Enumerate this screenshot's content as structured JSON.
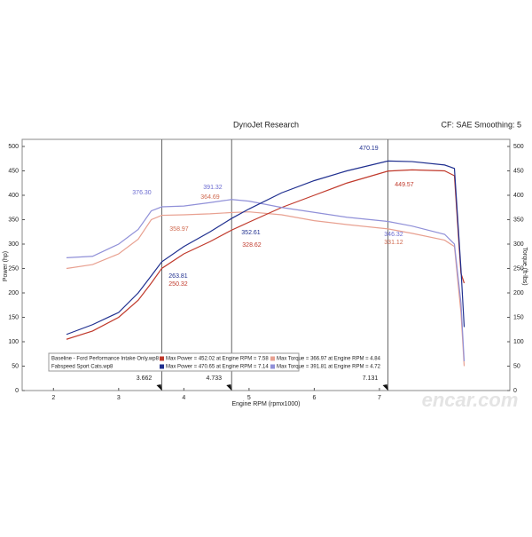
{
  "chart_data": {
    "type": "line",
    "title": "DynoJet Research",
    "subtitle": "CF: SAE Smoothing: 5",
    "x_label": "Engine RPM (rpmx1000)",
    "y_label": "Power (hp)",
    "y2_label": "Torque (ft-lbs)",
    "xlim": [
      1.52,
      9.0
    ],
    "xticks": [
      2,
      3,
      4,
      5,
      6,
      7
    ],
    "ylim": [
      0,
      500
    ],
    "yticks": [
      0,
      50,
      100,
      150,
      200,
      250,
      300,
      350,
      400,
      450,
      500
    ],
    "y2lim": [
      0,
      500
    ],
    "y2ticks": [
      0,
      50,
      100,
      150,
      200,
      250,
      300,
      350,
      400,
      450,
      500
    ],
    "grid": false,
    "cursors": [
      3.662,
      4.733,
      7.131
    ],
    "x": [
      2.2,
      2.6,
      3.0,
      3.3,
      3.5,
      3.662,
      4.0,
      4.4,
      4.733,
      5.0,
      5.5,
      6.0,
      6.5,
      7.131,
      7.5,
      8.0,
      8.15,
      8.25,
      8.3
    ],
    "runs": [
      {
        "name": "Baseline - Ford Performance Intake Only.wp8",
        "notes": [
          "Max Power = 452.02 at Engine RPM = 7.58",
          "Max Torque = 366.97 at Engine RPM = 4.84"
        ],
        "power": {
          "color": "#c0392b",
          "values": [
            105,
            122,
            150,
            185,
            220,
            250.32,
            280,
            305,
            328.62,
            345,
            375,
            400,
            425,
            449.57,
            452,
            450,
            440,
            240,
            220
          ]
        },
        "torque": {
          "color": "#e8a090",
          "values": [
            250,
            258,
            280,
            310,
            350,
            358.97,
            360,
            362,
            364.69,
            366,
            360,
            348,
            340,
            331.12,
            322,
            308,
            295,
            160,
            50
          ]
        }
      },
      {
        "name": "Fabspeed Sport Cats.wp8",
        "notes": [
          "Max Power = 470.65 at Engine RPM = 7.14",
          "Max Torque = 391.81 at Engine RPM = 4.72"
        ],
        "power": {
          "color": "#1f2f8f",
          "values": [
            115,
            135,
            160,
            200,
            235,
            263.81,
            295,
            325,
            352.61,
            372,
            405,
            430,
            450,
            470.19,
            469,
            462,
            455,
            250,
            130
          ]
        },
        "torque": {
          "color": "#9090d8",
          "values": [
            272,
            275,
            300,
            330,
            368,
            376.3,
            378,
            385,
            391.32,
            388,
            375,
            365,
            355,
            346.32,
            337,
            320,
            300,
            180,
            60
          ]
        }
      }
    ],
    "annotations": [
      {
        "text": "376.30",
        "color": "#6a6ad0"
      },
      {
        "text": "358.97",
        "color": "#d06a50"
      },
      {
        "text": "391.32",
        "color": "#6a6ad0"
      },
      {
        "text": "364.69",
        "color": "#d06a50"
      },
      {
        "text": "352.61",
        "color": "#1f2f8f"
      },
      {
        "text": "328.62",
        "color": "#c0392b"
      },
      {
        "text": "263.81",
        "color": "#1f2f8f"
      },
      {
        "text": "250.32",
        "color": "#c0392b"
      },
      {
        "text": "470.19",
        "color": "#1f2f8f"
      },
      {
        "text": "449.57",
        "color": "#c0392b"
      },
      {
        "text": "346.32",
        "color": "#6a6ad0"
      },
      {
        "text": "331.12",
        "color": "#d06a50"
      }
    ],
    "watermark": "encar.com"
  }
}
